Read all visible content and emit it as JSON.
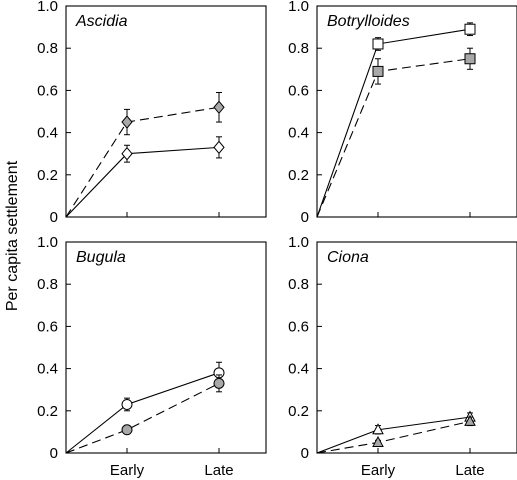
{
  "ylabel": "Per capita settlement",
  "chart_data": [
    {
      "type": "line",
      "title": "Ascidia",
      "x": [
        "0",
        "Early",
        "Late"
      ],
      "xtick_labels": [
        "",
        ""
      ],
      "ylim": [
        0,
        1.0
      ],
      "yticks": [
        "0",
        "0.2",
        "0.4",
        "0.6",
        "0.8",
        "1.0"
      ],
      "grid": false,
      "series": [
        {
          "marker": "diamond",
          "fill": "#ffffff",
          "dash": false,
          "values": [
            0,
            0.3,
            0.33
          ],
          "errors": [
            null,
            0.04,
            0.05
          ]
        },
        {
          "marker": "diamond",
          "fill": "#a8a8a8",
          "dash": true,
          "values": [
            0,
            0.45,
            0.52
          ],
          "errors": [
            null,
            0.06,
            0.07
          ]
        }
      ]
    },
    {
      "type": "line",
      "title": "Botrylloides",
      "x": [
        "0",
        "Early",
        "Late"
      ],
      "xtick_labels": [
        "",
        ""
      ],
      "ylim": [
        0,
        1.0
      ],
      "yticks": [
        "0",
        "0.2",
        "0.4",
        "0.6",
        "0.8",
        "1.0"
      ],
      "grid": false,
      "series": [
        {
          "marker": "square",
          "fill": "#ffffff",
          "dash": false,
          "values": [
            0,
            0.82,
            0.89
          ],
          "errors": [
            null,
            0.03,
            0.03
          ]
        },
        {
          "marker": "square",
          "fill": "#a8a8a8",
          "dash": true,
          "values": [
            0,
            0.69,
            0.75
          ],
          "errors": [
            null,
            0.06,
            0.05
          ]
        }
      ]
    },
    {
      "type": "line",
      "title": "Bugula",
      "x": [
        "0",
        "Early",
        "Late"
      ],
      "xtick_labels": [
        "Early",
        "Late"
      ],
      "ylim": [
        0,
        1.0
      ],
      "yticks": [
        "0",
        "0.2",
        "0.4",
        "0.6",
        "0.8",
        "1.0"
      ],
      "grid": false,
      "series": [
        {
          "marker": "circle",
          "fill": "#ffffff",
          "dash": false,
          "values": [
            0,
            0.23,
            0.38
          ],
          "errors": [
            null,
            0.03,
            0.05
          ]
        },
        {
          "marker": "circle",
          "fill": "#a8a8a8",
          "dash": true,
          "values": [
            0,
            0.11,
            0.33
          ],
          "errors": [
            null,
            0.01,
            0.04
          ]
        }
      ]
    },
    {
      "type": "line",
      "title": "Ciona",
      "x": [
        "0",
        "Early",
        "Late"
      ],
      "xtick_labels": [
        "Early",
        "Late"
      ],
      "ylim": [
        0,
        1.0
      ],
      "yticks": [
        "0",
        "0.2",
        "0.4",
        "0.6",
        "0.8",
        "1.0"
      ],
      "grid": false,
      "series": [
        {
          "marker": "triangle",
          "fill": "#ffffff",
          "dash": false,
          "values": [
            0,
            0.11,
            0.17
          ],
          "errors": [
            null,
            0.02,
            0.02
          ]
        },
        {
          "marker": "triangle",
          "fill": "#a8a8a8",
          "dash": true,
          "values": [
            0,
            0.05,
            0.15
          ],
          "errors": [
            null,
            0.01,
            0.02
          ]
        }
      ]
    }
  ]
}
